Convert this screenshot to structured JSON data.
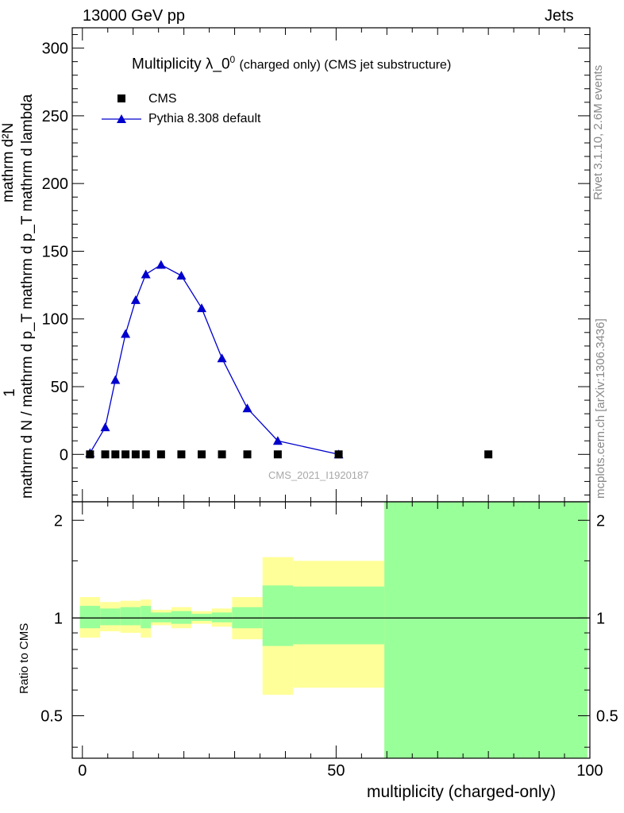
{
  "header": {
    "left": "13000 GeV pp",
    "right": "Jets"
  },
  "side_labels": {
    "rivet": "Rivet 3.1.10,  2.6M events",
    "mcplots": "mcplots.cern.ch [arXiv:1306.3436]"
  },
  "main_title": {
    "text": "Multiplicity λ_0",
    "superscript": "0",
    "rest": "(charged only) (CMS jet substructure)"
  },
  "y_label_main": {
    "numerator": "1",
    "numerator_text": "mathrm d²N",
    "denominator": "mathrm d N / mathrm d p_T mathrm d p_T mathrm d lambda"
  },
  "y_label_ratio": "Ratio to CMS",
  "x_label": "multiplicity (charged-only)",
  "watermark": "CMS_2021_I1920187",
  "legend": [
    {
      "label": "CMS",
      "marker": "square",
      "color": "#000000"
    },
    {
      "label": "Pythia 8.308 default",
      "marker": "triangle",
      "color": "#0000cc"
    }
  ],
  "chart_data": [
    {
      "type": "scatter",
      "panel": "main",
      "xlim": [
        -2,
        100
      ],
      "ylim": [
        -35,
        315
      ],
      "yticks": [
        0,
        50,
        100,
        150,
        200,
        250,
        300
      ],
      "series": [
        {
          "name": "CMS",
          "x": [
            1.5,
            4.5,
            6.5,
            8.5,
            10.5,
            12.5,
            15.5,
            19.5,
            23.5,
            27.5,
            32.5,
            38.5,
            50.5,
            80.0
          ],
          "y": [
            0,
            0,
            0,
            0,
            0,
            0,
            0,
            0,
            0,
            0,
            0,
            0,
            0,
            0
          ]
        },
        {
          "name": "Pythia 8.308 default",
          "x": [
            1.5,
            4.5,
            6.5,
            8.5,
            10.5,
            12.5,
            15.5,
            19.5,
            23.5,
            27.5,
            32.5,
            38.5,
            50.5
          ],
          "y": [
            1,
            20,
            55,
            89,
            114,
            133,
            140,
            132,
            108,
            71,
            34,
            10,
            0
          ]
        }
      ]
    },
    {
      "type": "area",
      "panel": "ratio",
      "xlim": [
        -2,
        100
      ],
      "ylim": [
        0.37,
        2.28
      ],
      "yscale": "log",
      "yticks": [
        0.5,
        1,
        2
      ],
      "xticks": [
        0,
        50,
        100
      ],
      "reference_line": 1,
      "bins": [
        {
          "x0": -0.5,
          "x1": 3.5,
          "green": [
            0.93,
            1.09
          ],
          "yellow": [
            0.87,
            1.16
          ]
        },
        {
          "x0": 3.5,
          "x1": 7.5,
          "green": [
            0.95,
            1.07
          ],
          "yellow": [
            0.91,
            1.12
          ]
        },
        {
          "x0": 7.5,
          "x1": 11.5,
          "green": [
            0.95,
            1.08
          ],
          "yellow": [
            0.9,
            1.13
          ]
        },
        {
          "x0": 11.5,
          "x1": 13.5,
          "green": [
            0.93,
            1.09
          ],
          "yellow": [
            0.87,
            1.14
          ]
        },
        {
          "x0": 13.5,
          "x1": 17.5,
          "green": [
            0.97,
            1.04
          ],
          "yellow": [
            0.95,
            1.06
          ]
        },
        {
          "x0": 17.5,
          "x1": 21.5,
          "green": [
            0.96,
            1.05
          ],
          "yellow": [
            0.93,
            1.08
          ]
        },
        {
          "x0": 21.5,
          "x1": 25.5,
          "green": [
            0.98,
            1.03
          ],
          "yellow": [
            0.96,
            1.05
          ]
        },
        {
          "x0": 25.5,
          "x1": 29.5,
          "green": [
            0.97,
            1.04
          ],
          "yellow": [
            0.94,
            1.07
          ]
        },
        {
          "x0": 29.5,
          "x1": 35.5,
          "green": [
            0.93,
            1.08
          ],
          "yellow": [
            0.86,
            1.16
          ]
        },
        {
          "x0": 35.5,
          "x1": 41.5,
          "green": [
            0.82,
            1.26
          ],
          "yellow": [
            0.58,
            1.54
          ]
        },
        {
          "x0": 41.5,
          "x1": 59.5,
          "green": [
            0.83,
            1.25
          ],
          "yellow": [
            0.61,
            1.5
          ]
        },
        {
          "x0": 59.5,
          "x1": 99.5,
          "green": [
            0.37,
            2.28
          ],
          "yellow": [
            0.37,
            2.28
          ]
        }
      ]
    }
  ],
  "colors": {
    "pythia": "#0000cc",
    "cms": "#000000",
    "band_green": "#99ff99",
    "band_yellow": "#ffff99"
  }
}
